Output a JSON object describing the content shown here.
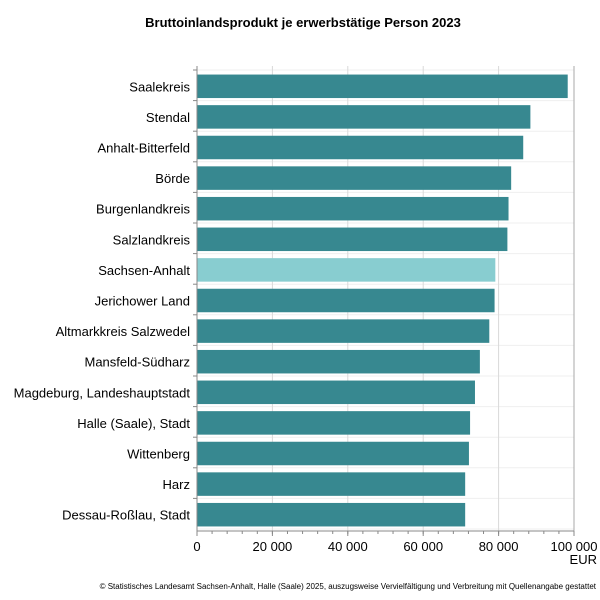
{
  "chart_data": {
    "type": "bar",
    "orientation": "horizontal",
    "title": "Bruttoinlandsprodukt je erwerbstätige Person 2023",
    "xlabel": "EUR",
    "ylabel": "",
    "xlim": [
      0,
      100000
    ],
    "xticks": [
      0,
      20000,
      40000,
      60000,
      80000,
      100000
    ],
    "xtick_labels": [
      "0",
      "20 000",
      "40 000",
      "60 000",
      "80 000",
      "100 000"
    ],
    "grid": true,
    "categories": [
      "Saalekreis",
      "Stendal",
      "Anhalt-Bitterfeld",
      "Börde",
      "Burgenlandkreis",
      "Salzlandkreis",
      "Sachsen-Anhalt",
      "Jerichower Land",
      "Altmarkkreis Salzwedel",
      "Mansfeld-Südharz",
      "Magdeburg, Landeshauptstadt",
      "Halle (Saale), Stadt",
      "Wittenberg",
      "Harz",
      "Dessau-Roßlau, Stadt"
    ],
    "values": [
      98200,
      88300,
      86400,
      83200,
      82500,
      82200,
      79000,
      78800,
      77400,
      74900,
      73600,
      72300,
      72000,
      71000,
      71000
    ],
    "highlight": "Sachsen-Anhalt",
    "colors": {
      "bar": "#378890",
      "highlight": "#88cdd0",
      "grid": "#d9d9d9"
    },
    "footnote": "© Statistisches Landesamt Sachsen-Anhalt, Halle (Saale) 2025, auszugsweise Vervielfältigung und Verbreitung mit Quellenangabe gestattet"
  }
}
